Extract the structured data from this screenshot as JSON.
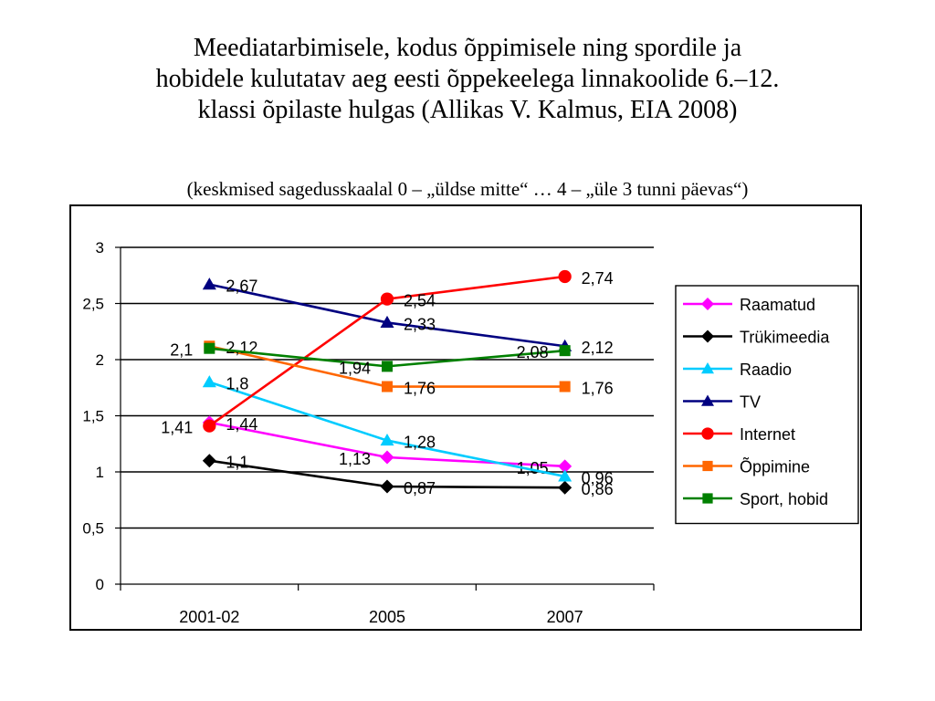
{
  "title_lines": [
    "Meediatarbimisele, kodus õppimisele ning spordile ja",
    "hobidele kulutatav aeg eesti õppekeelega linnakoolide 6.–12.",
    "klassi õpilaste hulgas (Allikas V. Kalmus, EIA 2008)"
  ],
  "subtitle": "(keskmised sagedusskaalal 0 – „üldse mitte“ … 4 – „üle 3 tunni päevas“)",
  "chart_data": {
    "type": "line",
    "categories": [
      "2001-02",
      "2005",
      "2007"
    ],
    "ylim": [
      0,
      3
    ],
    "yticks": [
      "0",
      "0,5",
      "1",
      "1,5",
      "2",
      "2,5",
      "3"
    ],
    "grid": true,
    "legend_position": "right",
    "series": [
      {
        "name": "Raamatud",
        "values": [
          1.44,
          1.13,
          1.05
        ],
        "labels": [
          "1,44",
          "1,13",
          "1,05"
        ],
        "color": "#ff00ff",
        "marker": "diamond"
      },
      {
        "name": "Trükimeedia",
        "values": [
          1.1,
          0.87,
          0.86
        ],
        "labels": [
          "1,1",
          "0,87",
          "0,86"
        ],
        "color": "#000000",
        "marker": "diamond"
      },
      {
        "name": "Raadio",
        "values": [
          1.8,
          1.28,
          0.96
        ],
        "labels": [
          "1,8",
          "1,28",
          "0,96"
        ],
        "color": "#00ccff",
        "marker": "triangle"
      },
      {
        "name": "TV",
        "values": [
          2.67,
          2.33,
          2.12
        ],
        "labels": [
          "2,67",
          "2,33",
          "2,12"
        ],
        "color": "#000080",
        "marker": "triangle"
      },
      {
        "name": "Internet",
        "values": [
          1.41,
          2.54,
          2.74
        ],
        "labels": [
          "1,41",
          "2,54",
          "2,74"
        ],
        "color": "#ff0000",
        "marker": "circle"
      },
      {
        "name": "Õppimine",
        "values": [
          2.12,
          1.76,
          1.76
        ],
        "labels": [
          "2,12",
          "1,76",
          "1,76"
        ],
        "color": "#ff6600",
        "marker": "square"
      },
      {
        "name": "Sport, hobid",
        "values": [
          2.1,
          1.94,
          2.08
        ],
        "labels": [
          "2,1",
          "1,94",
          "2,08"
        ],
        "color": "#008000",
        "marker": "square"
      }
    ]
  }
}
